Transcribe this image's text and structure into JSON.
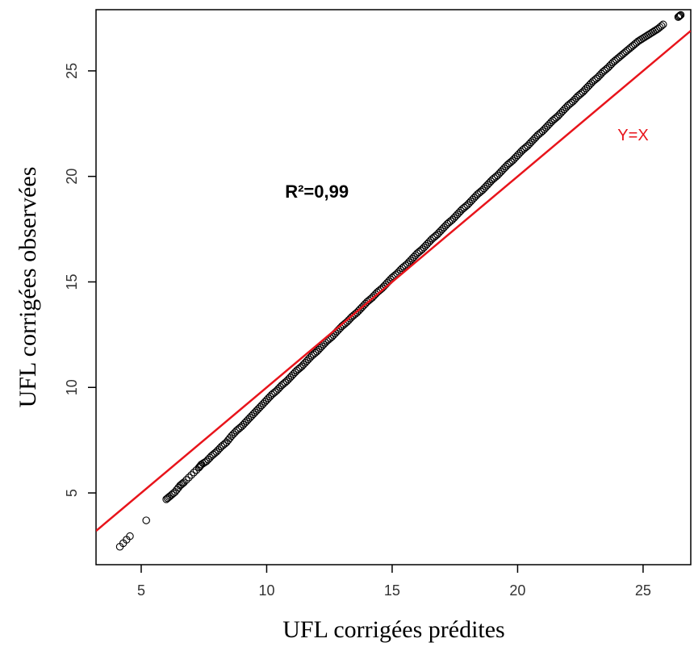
{
  "chart_data": {
    "type": "scatter",
    "title": "",
    "xlabel": "UFL corrigées prédites",
    "ylabel": "UFL corrigées observées",
    "xlim": [
      3.2,
      26.9
    ],
    "ylim": [
      1.6,
      27.9
    ],
    "xticks": [
      5,
      10,
      15,
      20,
      25
    ],
    "yticks": [
      5,
      10,
      15,
      20,
      25
    ],
    "grid": false,
    "point_color": "#000000",
    "line_color": "#e8141b",
    "reference_line": {
      "label": "Y=X",
      "slope": 1,
      "intercept": 0
    },
    "annotations": {
      "r2": {
        "text": "R²=0,99",
        "x": 12.0,
        "y": 19.0
      },
      "yx": {
        "text": "Y=X",
        "x": 24.6,
        "y": 21.7
      }
    },
    "points": [
      [
        4.15,
        2.45
      ],
      [
        4.55,
        2.95
      ],
      [
        5.2,
        3.7
      ],
      [
        6.0,
        4.7
      ],
      [
        6.15,
        4.85
      ],
      [
        6.35,
        5.05
      ],
      [
        6.55,
        5.35
      ],
      [
        6.7,
        5.5
      ],
      [
        7.0,
        5.85
      ],
      [
        7.3,
        6.2
      ],
      [
        7.4,
        6.35
      ],
      [
        7.6,
        6.5
      ],
      [
        7.8,
        6.75
      ],
      [
        8.0,
        6.95
      ],
      [
        8.2,
        7.2
      ],
      [
        8.4,
        7.4
      ],
      [
        8.6,
        7.7
      ],
      [
        8.8,
        7.95
      ],
      [
        9.0,
        8.15
      ],
      [
        9.2,
        8.4
      ],
      [
        9.4,
        8.65
      ],
      [
        9.6,
        8.9
      ],
      [
        9.8,
        9.15
      ],
      [
        10.0,
        9.4
      ],
      [
        10.2,
        9.65
      ],
      [
        10.4,
        9.85
      ],
      [
        10.6,
        10.1
      ],
      [
        10.8,
        10.3
      ],
      [
        11.0,
        10.55
      ],
      [
        11.2,
        10.8
      ],
      [
        11.4,
        11.0
      ],
      [
        11.6,
        11.25
      ],
      [
        11.8,
        11.5
      ],
      [
        12.0,
        11.7
      ],
      [
        12.2,
        11.95
      ],
      [
        12.4,
        12.2
      ],
      [
        12.6,
        12.4
      ],
      [
        12.8,
        12.65
      ],
      [
        13.0,
        12.9
      ],
      [
        13.2,
        13.1
      ],
      [
        13.4,
        13.35
      ],
      [
        13.6,
        13.55
      ],
      [
        13.8,
        13.8
      ],
      [
        14.0,
        14.05
      ],
      [
        14.2,
        14.25
      ],
      [
        14.4,
        14.5
      ],
      [
        14.6,
        14.7
      ],
      [
        14.8,
        14.95
      ],
      [
        15.0,
        15.2
      ],
      [
        15.2,
        15.4
      ],
      [
        15.4,
        15.65
      ],
      [
        15.6,
        15.85
      ],
      [
        15.8,
        16.1
      ],
      [
        16.0,
        16.35
      ],
      [
        16.2,
        16.55
      ],
      [
        16.4,
        16.8
      ],
      [
        16.6,
        17.05
      ],
      [
        16.8,
        17.25
      ],
      [
        17.0,
        17.5
      ],
      [
        17.2,
        17.75
      ],
      [
        17.4,
        17.95
      ],
      [
        17.6,
        18.2
      ],
      [
        17.8,
        18.45
      ],
      [
        18.0,
        18.65
      ],
      [
        18.2,
        18.9
      ],
      [
        18.4,
        19.15
      ],
      [
        18.6,
        19.35
      ],
      [
        18.8,
        19.6
      ],
      [
        19.0,
        19.85
      ],
      [
        19.2,
        20.05
      ],
      [
        19.4,
        20.3
      ],
      [
        19.6,
        20.55
      ],
      [
        19.8,
        20.75
      ],
      [
        20.0,
        21.0
      ],
      [
        20.2,
        21.25
      ],
      [
        20.4,
        21.45
      ],
      [
        20.6,
        21.7
      ],
      [
        20.8,
        21.95
      ],
      [
        21.0,
        22.15
      ],
      [
        21.2,
        22.4
      ],
      [
        21.4,
        22.65
      ],
      [
        21.6,
        22.85
      ],
      [
        21.8,
        23.1
      ],
      [
        22.0,
        23.35
      ],
      [
        22.2,
        23.55
      ],
      [
        22.4,
        23.8
      ],
      [
        22.6,
        24.0
      ],
      [
        22.8,
        24.25
      ],
      [
        23.0,
        24.5
      ],
      [
        23.2,
        24.7
      ],
      [
        23.4,
        24.95
      ],
      [
        23.6,
        25.15
      ],
      [
        23.8,
        25.4
      ],
      [
        24.0,
        25.6
      ],
      [
        24.2,
        25.8
      ],
      [
        24.4,
        26.0
      ],
      [
        24.6,
        26.2
      ],
      [
        24.8,
        26.4
      ],
      [
        25.0,
        26.55
      ],
      [
        25.2,
        26.7
      ],
      [
        25.4,
        26.85
      ],
      [
        25.6,
        27.0
      ],
      [
        25.8,
        27.2
      ],
      [
        26.4,
        27.55
      ],
      [
        26.5,
        27.65
      ]
    ]
  }
}
